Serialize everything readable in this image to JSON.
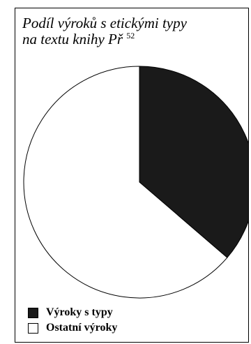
{
  "chart_data": {
    "type": "pie",
    "title_lines": [
      "Podíl výroků s etickými typy",
      "na textu knihy Př"
    ],
    "title_superscript": "52",
    "series": [
      {
        "name": "Výroky s typy",
        "value": 36.3,
        "color": "#1a1a1a"
      },
      {
        "name": "Ostatní výroky",
        "value": 63.7,
        "color": "#ffffff"
      }
    ],
    "legend_position": "bottom-left"
  }
}
